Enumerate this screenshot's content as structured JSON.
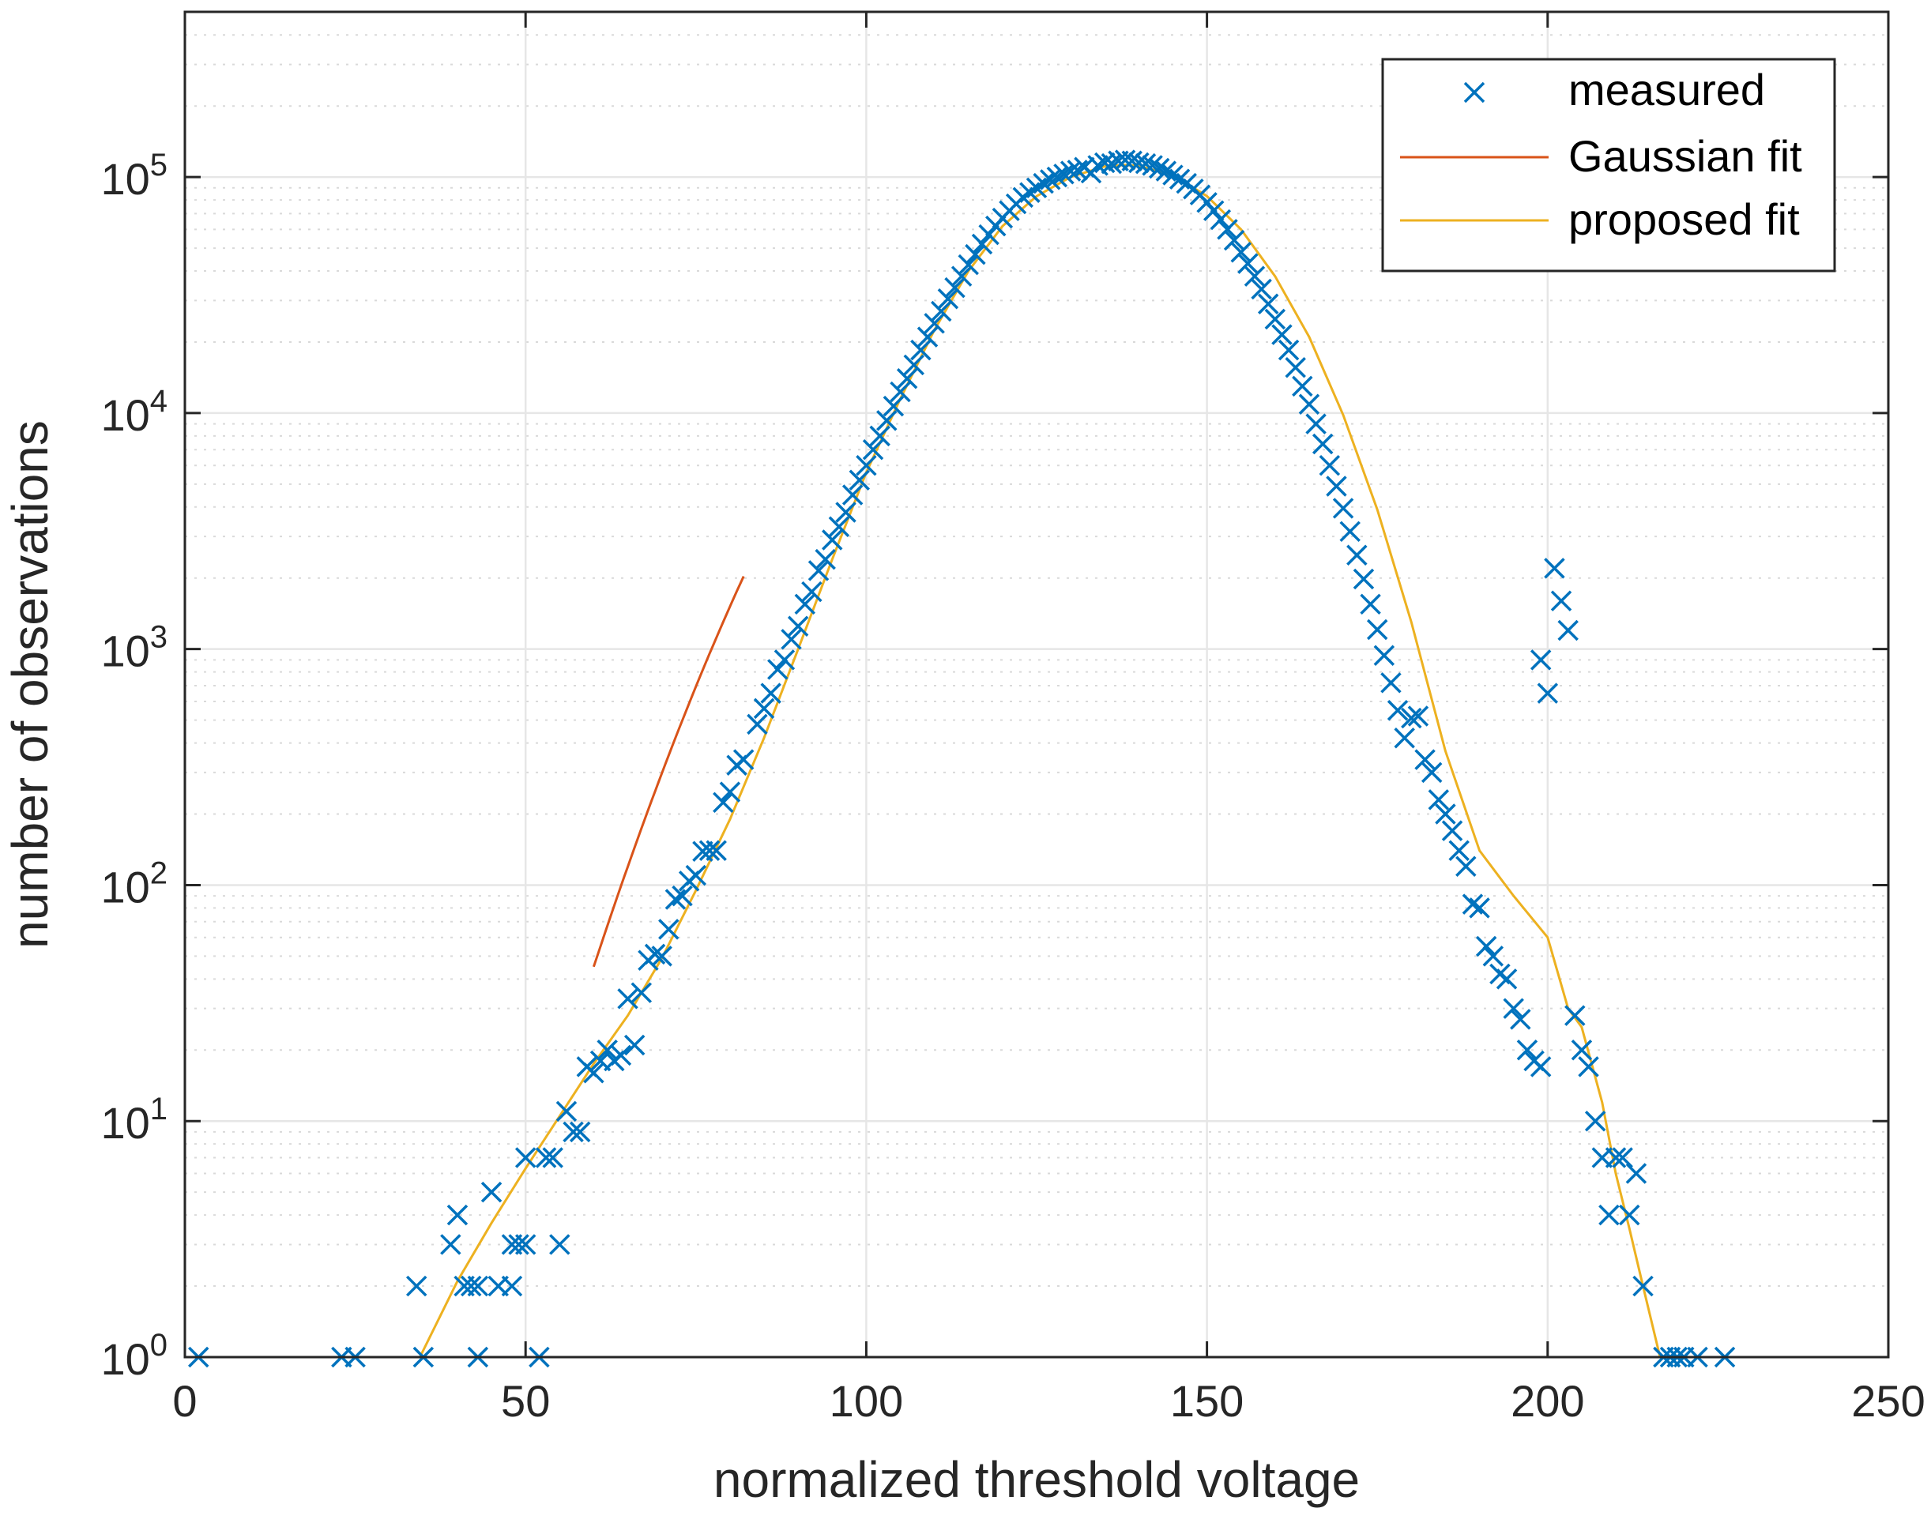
{
  "chart_data": {
    "type": "scatter",
    "title": "",
    "xlabel": "normalized threshold voltage",
    "ylabel": "number of observations",
    "xlim": [
      0,
      250
    ],
    "ylim_log10": [
      0,
      5.7
    ],
    "yscale": "log",
    "grid": true,
    "x_ticks": [
      0,
      50,
      100,
      150,
      200,
      250
    ],
    "x_tick_labels": [
      "0",
      "50",
      "100",
      "150",
      "200",
      "250"
    ],
    "y_ticks_log10": [
      0,
      1,
      2,
      3,
      4,
      5
    ],
    "y_tick_labels": [
      {
        "base": "10",
        "exp": "0"
      },
      {
        "base": "10",
        "exp": "1"
      },
      {
        "base": "10",
        "exp": "2"
      },
      {
        "base": "10",
        "exp": "3"
      },
      {
        "base": "10",
        "exp": "4"
      },
      {
        "base": "10",
        "exp": "5"
      }
    ],
    "legend": {
      "position": "top-right",
      "entries": [
        "measured",
        "Gaussian fit",
        "proposed fit"
      ]
    },
    "colors": {
      "measured": "#0072BD",
      "gaussian": "#D95319",
      "proposed": "#EDB120",
      "grid": "#e6e6e6",
      "axis": "#262626"
    },
    "series": [
      {
        "name": "measured",
        "marker": "x",
        "points": [
          [
            2,
            1
          ],
          [
            23,
            1
          ],
          [
            25,
            1
          ],
          [
            34,
            2
          ],
          [
            35,
            1
          ],
          [
            39,
            3
          ],
          [
            40,
            4
          ],
          [
            41,
            2
          ],
          [
            42,
            2
          ],
          [
            43,
            2
          ],
          [
            43,
            1
          ],
          [
            45,
            5
          ],
          [
            46,
            2
          ],
          [
            48,
            3
          ],
          [
            48,
            2
          ],
          [
            49,
            3
          ],
          [
            50,
            7
          ],
          [
            50,
            3
          ],
          [
            52,
            1
          ],
          [
            53,
            7
          ],
          [
            54,
            7
          ],
          [
            55,
            3
          ],
          [
            56,
            11
          ],
          [
            57,
            9
          ],
          [
            58,
            9
          ],
          [
            59,
            17
          ],
          [
            60,
            16
          ],
          [
            61,
            18
          ],
          [
            62,
            20
          ],
          [
            63,
            18
          ],
          [
            64,
            19
          ],
          [
            65,
            33
          ],
          [
            66,
            21
          ],
          [
            67,
            35
          ],
          [
            68,
            48
          ],
          [
            69,
            51
          ],
          [
            70,
            50
          ],
          [
            71,
            65
          ],
          [
            72,
            87
          ],
          [
            73,
            90
          ],
          [
            74,
            104
          ],
          [
            75,
            110
          ],
          [
            76,
            139
          ],
          [
            77,
            140
          ],
          [
            78,
            140
          ],
          [
            79,
            224
          ],
          [
            80,
            248
          ],
          [
            81,
            322
          ],
          [
            82,
            340
          ],
          [
            84,
            480
          ],
          [
            85,
            560
          ],
          [
            86,
            650
          ],
          [
            87,
            820
          ],
          [
            88,
            900
          ],
          [
            89,
            1100
          ],
          [
            90,
            1250
          ],
          [
            91,
            1550
          ],
          [
            92,
            1750
          ],
          [
            93,
            2150
          ],
          [
            94,
            2400
          ],
          [
            95,
            2900
          ],
          [
            96,
            3300
          ],
          [
            97,
            3800
          ],
          [
            98,
            4500
          ],
          [
            99,
            5200
          ],
          [
            100,
            6000
          ],
          [
            101,
            7000
          ],
          [
            102,
            8000
          ],
          [
            103,
            9300
          ],
          [
            104,
            10700
          ],
          [
            105,
            12300
          ],
          [
            106,
            14000
          ],
          [
            107,
            16000
          ],
          [
            108,
            18500
          ],
          [
            109,
            21000
          ],
          [
            110,
            24000
          ],
          [
            111,
            27000
          ],
          [
            112,
            30500
          ],
          [
            113,
            34000
          ],
          [
            114,
            38000
          ],
          [
            115,
            42500
          ],
          [
            116,
            47000
          ],
          [
            117,
            52000
          ],
          [
            118,
            57000
          ],
          [
            119,
            62000
          ],
          [
            120,
            67000
          ],
          [
            121,
            72000
          ],
          [
            122,
            77000
          ],
          [
            123,
            82000
          ],
          [
            124,
            86000
          ],
          [
            125,
            90000
          ],
          [
            126,
            94000
          ],
          [
            127,
            97500
          ],
          [
            128,
            100000
          ],
          [
            129,
            103000
          ],
          [
            130,
            106000
          ],
          [
            131,
            107000
          ],
          [
            132,
            110000
          ],
          [
            133,
            104000
          ],
          [
            134,
            112000
          ],
          [
            135,
            115000
          ],
          [
            136,
            114000
          ],
          [
            137,
            117000
          ],
          [
            138,
            118000
          ],
          [
            139,
            117000
          ],
          [
            140,
            115000
          ],
          [
            141,
            114000
          ],
          [
            142,
            112000
          ],
          [
            143,
            109000
          ],
          [
            144,
            106000
          ],
          [
            145,
            102000
          ],
          [
            146,
            98000
          ],
          [
            147,
            94000
          ],
          [
            148,
            89000
          ],
          [
            149,
            84000
          ],
          [
            150,
            78000
          ],
          [
            151,
            72000
          ],
          [
            152,
            66000
          ],
          [
            153,
            60000
          ],
          [
            154,
            54000
          ],
          [
            155,
            48000
          ],
          [
            156,
            43000
          ],
          [
            157,
            38000
          ],
          [
            158,
            33500
          ],
          [
            159,
            29000
          ],
          [
            160,
            25000
          ],
          [
            161,
            21500
          ],
          [
            162,
            18500
          ],
          [
            163,
            15600
          ],
          [
            164,
            13000
          ],
          [
            165,
            10900
          ],
          [
            166,
            9000
          ],
          [
            167,
            7400
          ],
          [
            168,
            6000
          ],
          [
            169,
            4900
          ],
          [
            170,
            3950
          ],
          [
            171,
            3150
          ],
          [
            172,
            2500
          ],
          [
            173,
            1980
          ],
          [
            174,
            1550
          ],
          [
            175,
            1210
          ],
          [
            176,
            940
          ],
          [
            177,
            720
          ],
          [
            178,
            550
          ],
          [
            179,
            420
          ],
          [
            180,
            510
          ],
          [
            181,
            520
          ],
          [
            182,
            340
          ],
          [
            183,
            300
          ],
          [
            184,
            230
          ],
          [
            185,
            200
          ],
          [
            186,
            170
          ],
          [
            187,
            140
          ],
          [
            188,
            120
          ],
          [
            189,
            83
          ],
          [
            190,
            80
          ],
          [
            191,
            55
          ],
          [
            192,
            50
          ],
          [
            193,
            42
          ],
          [
            194,
            40
          ],
          [
            195,
            30
          ],
          [
            196,
            27
          ],
          [
            197,
            20
          ],
          [
            198,
            18
          ],
          [
            199,
            17
          ],
          [
            199,
            900
          ],
          [
            200,
            650
          ],
          [
            201,
            2200
          ],
          [
            202,
            1600
          ],
          [
            203,
            1200
          ],
          [
            204,
            28
          ],
          [
            205,
            20
          ],
          [
            206,
            17
          ],
          [
            207,
            10
          ],
          [
            208,
            7
          ],
          [
            209,
            4
          ],
          [
            210,
            7
          ],
          [
            211,
            7
          ],
          [
            212,
            4
          ],
          [
            213,
            6
          ],
          [
            214,
            2
          ],
          [
            217,
            1
          ],
          [
            218,
            1
          ],
          [
            219,
            1
          ],
          [
            220,
            1
          ],
          [
            222,
            1
          ],
          [
            226,
            1
          ]
        ]
      },
      {
        "name": "Gaussian fit",
        "line": true,
        "x_range": [
          60,
          82
        ],
        "mu": 137.5,
        "sigma": 19.6,
        "peak": 112000
      },
      {
        "name": "proposed fit",
        "line": true,
        "x_range": [
          34.5,
          216.5
        ],
        "points": [
          [
            34.5,
            1
          ],
          [
            40,
            2.1
          ],
          [
            45,
            3.7
          ],
          [
            50,
            6.3
          ],
          [
            55,
            10.5
          ],
          [
            60,
            17.5
          ],
          [
            65,
            28
          ],
          [
            70,
            49
          ],
          [
            75,
            95
          ],
          [
            80,
            190
          ],
          [
            85,
            420
          ],
          [
            90,
            1000
          ],
          [
            95,
            2400
          ],
          [
            100,
            5600
          ],
          [
            105,
            11500
          ],
          [
            110,
            22500
          ],
          [
            115,
            40000
          ],
          [
            120,
            62000
          ],
          [
            125,
            83000
          ],
          [
            130,
            100000
          ],
          [
            135,
            111000
          ],
          [
            138,
            112500
          ],
          [
            140,
            111500
          ],
          [
            145,
            102000
          ],
          [
            150,
            83000
          ],
          [
            155,
            60000
          ],
          [
            160,
            38000
          ],
          [
            165,
            21000
          ],
          [
            170,
            9800
          ],
          [
            175,
            3900
          ],
          [
            180,
            1300
          ],
          [
            185,
            370
          ],
          [
            190,
            140
          ],
          [
            195,
            90
          ],
          [
            200,
            60
          ],
          [
            203,
            30
          ],
          [
            205,
            25
          ],
          [
            208,
            12
          ],
          [
            210,
            6
          ],
          [
            212,
            3.5
          ],
          [
            214,
            2
          ],
          [
            216.5,
            1
          ]
        ]
      }
    ]
  }
}
